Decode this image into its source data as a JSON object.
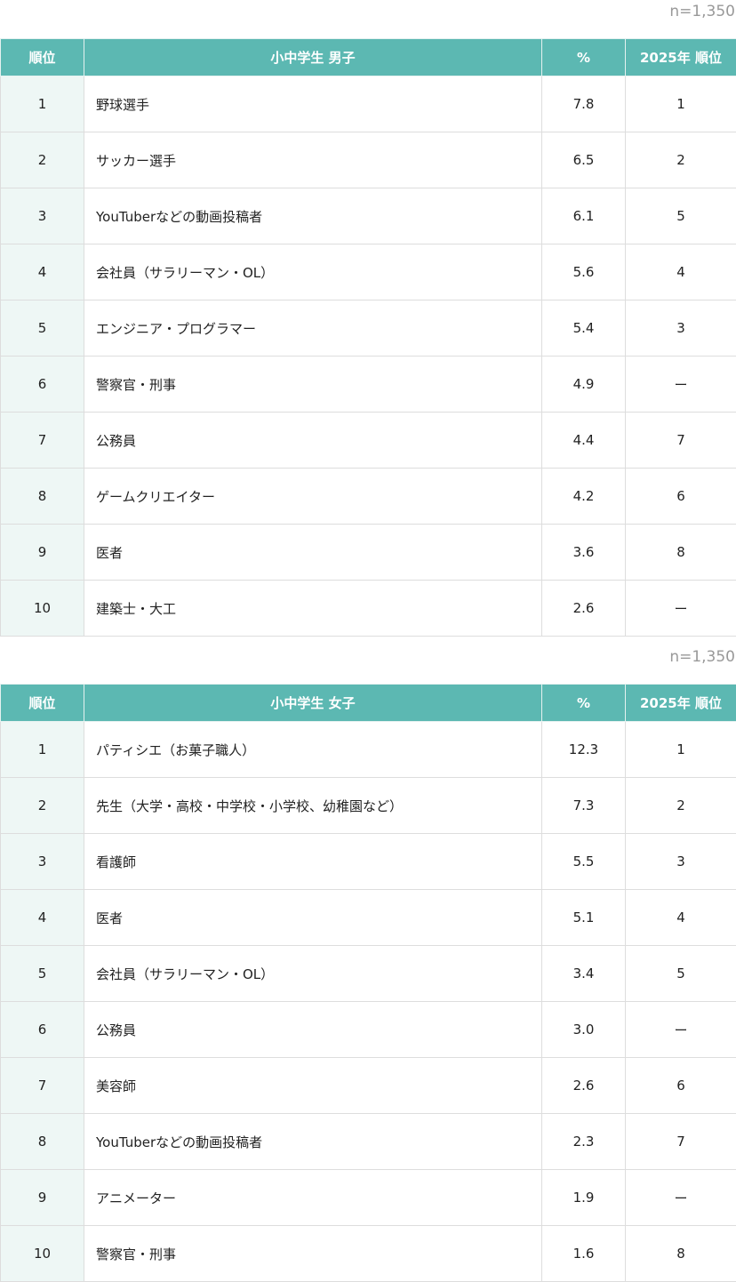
{
  "colors": {
    "header": "#5cb8b2",
    "rank_bg": "#eef7f5"
  },
  "tables": [
    {
      "sample": "n=1,350",
      "headers": [
        "順位",
        "小中学生 男子",
        "%",
        "2025年 順位"
      ],
      "rows": [
        {
          "rank": "1",
          "job": "野球選手",
          "pct": "7.8",
          "prev": "1"
        },
        {
          "rank": "2",
          "job": "サッカー選手",
          "pct": "6.5",
          "prev": "2"
        },
        {
          "rank": "3",
          "job": "YouTuberなどの動画投稿者",
          "pct": "6.1",
          "prev": "5"
        },
        {
          "rank": "4",
          "job": "会社員（サラリーマン・OL）",
          "pct": "5.6",
          "prev": "4"
        },
        {
          "rank": "5",
          "job": "エンジニア・プログラマー",
          "pct": "5.4",
          "prev": "3"
        },
        {
          "rank": "6",
          "job": "警察官・刑事",
          "pct": "4.9",
          "prev": "ー"
        },
        {
          "rank": "7",
          "job": "公務員",
          "pct": "4.4",
          "prev": "7"
        },
        {
          "rank": "8",
          "job": "ゲームクリエイター",
          "pct": "4.2",
          "prev": "6"
        },
        {
          "rank": "9",
          "job": "医者",
          "pct": "3.6",
          "prev": "8"
        },
        {
          "rank": "10",
          "job": "建築士・大工",
          "pct": "2.6",
          "prev": "ー"
        }
      ]
    },
    {
      "sample": "n=1,350",
      "headers": [
        "順位",
        "小中学生 女子",
        "%",
        "2025年 順位"
      ],
      "rows": [
        {
          "rank": "1",
          "job": "パティシエ（お菓子職人）",
          "pct": "12.3",
          "prev": "1"
        },
        {
          "rank": "2",
          "job": "先生（大学・高校・中学校・小学校、幼稚園など）",
          "pct": "7.3",
          "prev": "2"
        },
        {
          "rank": "3",
          "job": "看護師",
          "pct": "5.5",
          "prev": "3"
        },
        {
          "rank": "4",
          "job": "医者",
          "pct": "5.1",
          "prev": "4"
        },
        {
          "rank": "5",
          "job": "会社員（サラリーマン・OL）",
          "pct": "3.4",
          "prev": "5"
        },
        {
          "rank": "6",
          "job": "公務員",
          "pct": "3.0",
          "prev": "ー"
        },
        {
          "rank": "7",
          "job": "美容師",
          "pct": "2.6",
          "prev": "6"
        },
        {
          "rank": "8",
          "job": "YouTuberなどの動画投稿者",
          "pct": "2.3",
          "prev": "7"
        },
        {
          "rank": "9",
          "job": "アニメーター",
          "pct": "1.9",
          "prev": "ー"
        },
        {
          "rank": "10",
          "job": "警察官・刑事",
          "pct": "1.6",
          "prev": "8"
        }
      ]
    }
  ]
}
